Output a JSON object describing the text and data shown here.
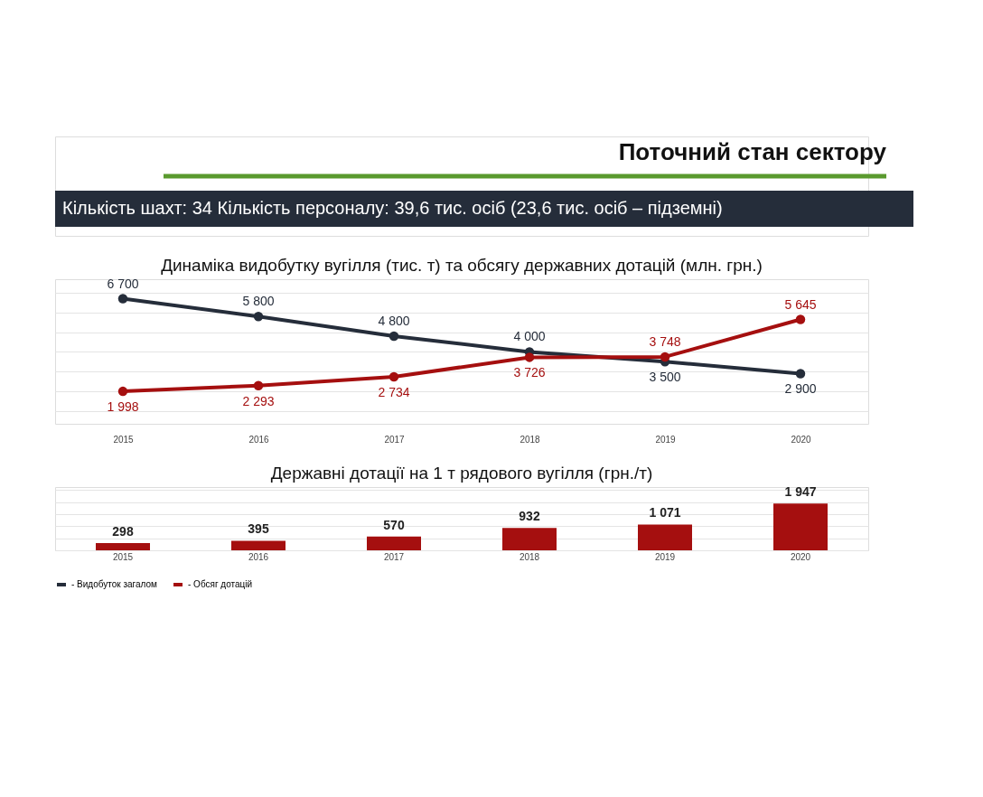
{
  "chart_data": [
    {
      "type": "other",
      "title": "Поточний стан сектору",
      "annotations": [
        "Кількість шахт:  34      Кількість персоналу:  39,6 тис. осіб (23,6 тис. осіб – підземні)"
      ]
    },
    {
      "type": "line",
      "title": "Динаміка видобутку вугілля (тис. т) та обсягу державних дотацій (млн. грн.)",
      "categories": [
        "2015",
        "2016",
        "2017",
        "2018",
        "2019",
        "2020"
      ],
      "series": [
        {
          "name": "- Видобуток загалом",
          "color": "#252d3a",
          "values": [
            6700,
            5800,
            4800,
            4000,
            3500,
            2900
          ],
          "value_labels": [
            "6 700",
            "5 800",
            "4 800",
            "4 000",
            "3 500",
            "2 900"
          ]
        },
        {
          "name": "- Обсяг дотацій",
          "color": "#a50f0f",
          "values": [
            1998,
            2293,
            2734,
            3726,
            3748,
            5645
          ],
          "value_labels": [
            "1 998",
            "2 293",
            "2 734",
            "3 726",
            "3 748",
            "5 645"
          ]
        }
      ],
      "marker": "circle",
      "grid": "y",
      "legend": "bottom",
      "tick_labels": "x"
    },
    {
      "type": "bar",
      "title": "Державні дотації на 1 т рядового вугілля (грн./т)",
      "categories": [
        "2015",
        "2016",
        "2017",
        "2018",
        "2019",
        "2020"
      ],
      "values": [
        298,
        395,
        570,
        932,
        1071,
        1947
      ],
      "value_labels": [
        "298",
        "395",
        "570",
        "932",
        "1 071",
        "1 947"
      ],
      "color": "#a50f0f",
      "grid": "y",
      "tick_labels": "x"
    }
  ]
}
